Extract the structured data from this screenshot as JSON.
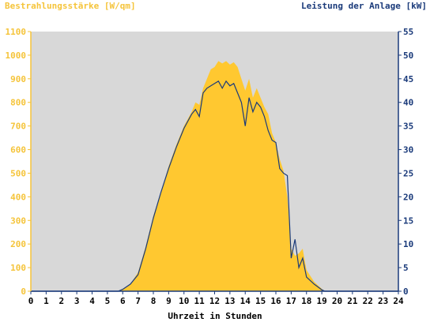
{
  "chart_data": {
    "type": "area",
    "title": "",
    "ylabel_left": "Bestrahlungsstärke [W/qm]",
    "ylabel_right": "Leistung der Anlage [kW]",
    "xlabel": "Uhrzeit in Stunden",
    "xlim": [
      0,
      24
    ],
    "ylim_left": [
      0,
      1100
    ],
    "ylim_right": [
      0,
      55
    ],
    "x_ticks": [
      "0",
      "1",
      "2",
      "3",
      "4",
      "5",
      "6",
      "7",
      "8",
      "9",
      "10",
      "11",
      "12",
      "13",
      "14",
      "15",
      "16",
      "17",
      "18",
      "19",
      "20",
      "21",
      "22",
      "23",
      "24"
    ],
    "y_ticks_left": [
      "0",
      "100",
      "200",
      "300",
      "400",
      "500",
      "600",
      "700",
      "800",
      "900",
      "1000",
      "1100"
    ],
    "y_ticks_right": [
      "0",
      "5",
      "10",
      "15",
      "20",
      "25",
      "30",
      "35",
      "40",
      "45",
      "50",
      "55"
    ],
    "grid": false,
    "colors": {
      "plot_bg": "#d8d8d8",
      "irradiance": "#ffc830",
      "power": "#1a3a7a",
      "left_axis": "#f5c43a",
      "right_axis": "#1a3a7a"
    },
    "series": [
      {
        "name": "Bestrahlungsstärke [W/qm]",
        "axis": "left",
        "points": [
          [
            0,
            0
          ],
          [
            5.7,
            0
          ],
          [
            6,
            10
          ],
          [
            6.5,
            30
          ],
          [
            7,
            80
          ],
          [
            7.5,
            190
          ],
          [
            8,
            320
          ],
          [
            8.5,
            420
          ],
          [
            9,
            530
          ],
          [
            9.5,
            620
          ],
          [
            10,
            700
          ],
          [
            10.5,
            760
          ],
          [
            10.75,
            800
          ],
          [
            11,
            790
          ],
          [
            11.25,
            860
          ],
          [
            11.5,
            900
          ],
          [
            11.75,
            940
          ],
          [
            12,
            950
          ],
          [
            12.25,
            975
          ],
          [
            12.5,
            965
          ],
          [
            12.75,
            975
          ],
          [
            13,
            960
          ],
          [
            13.25,
            970
          ],
          [
            13.5,
            950
          ],
          [
            13.75,
            900
          ],
          [
            14,
            850
          ],
          [
            14.25,
            900
          ],
          [
            14.5,
            820
          ],
          [
            14.75,
            860
          ],
          [
            15,
            820
          ],
          [
            15.25,
            780
          ],
          [
            15.5,
            750
          ],
          [
            15.75,
            670
          ],
          [
            16,
            630
          ],
          [
            16.25,
            560
          ],
          [
            16.5,
            510
          ],
          [
            16.75,
            400
          ],
          [
            17,
            180
          ],
          [
            17.25,
            150
          ],
          [
            17.5,
            160
          ],
          [
            17.75,
            180
          ],
          [
            18,
            90
          ],
          [
            18.5,
            40
          ],
          [
            19,
            10
          ],
          [
            19.2,
            0
          ],
          [
            24,
            0
          ]
        ]
      },
      {
        "name": "Leistung der Anlage [kW]",
        "axis": "right",
        "points": [
          [
            0,
            0
          ],
          [
            5.7,
            0
          ],
          [
            6,
            0.4
          ],
          [
            6.5,
            1.5
          ],
          [
            7,
            3.5
          ],
          [
            7.5,
            9
          ],
          [
            8,
            15.5
          ],
          [
            8.5,
            21
          ],
          [
            9,
            26
          ],
          [
            9.5,
            30.5
          ],
          [
            10,
            34.5
          ],
          [
            10.5,
            37.5
          ],
          [
            10.75,
            38.5
          ],
          [
            11,
            37
          ],
          [
            11.25,
            42
          ],
          [
            11.5,
            43
          ],
          [
            11.75,
            43.5
          ],
          [
            12,
            44
          ],
          [
            12.25,
            44.5
          ],
          [
            12.5,
            43
          ],
          [
            12.75,
            44.5
          ],
          [
            13,
            43.5
          ],
          [
            13.25,
            44
          ],
          [
            13.5,
            42
          ],
          [
            13.75,
            40
          ],
          [
            14,
            35
          ],
          [
            14.25,
            41
          ],
          [
            14.5,
            38
          ],
          [
            14.75,
            40
          ],
          [
            15,
            39
          ],
          [
            15.25,
            37
          ],
          [
            15.5,
            34
          ],
          [
            15.75,
            32
          ],
          [
            16,
            31.5
          ],
          [
            16.25,
            26
          ],
          [
            16.5,
            25
          ],
          [
            16.75,
            24.5
          ],
          [
            17,
            7
          ],
          [
            17.25,
            11
          ],
          [
            17.5,
            5
          ],
          [
            17.75,
            7
          ],
          [
            18,
            3
          ],
          [
            18.5,
            1.5
          ],
          [
            19,
            0.3
          ],
          [
            19.2,
            0
          ],
          [
            24,
            0
          ]
        ]
      }
    ]
  }
}
